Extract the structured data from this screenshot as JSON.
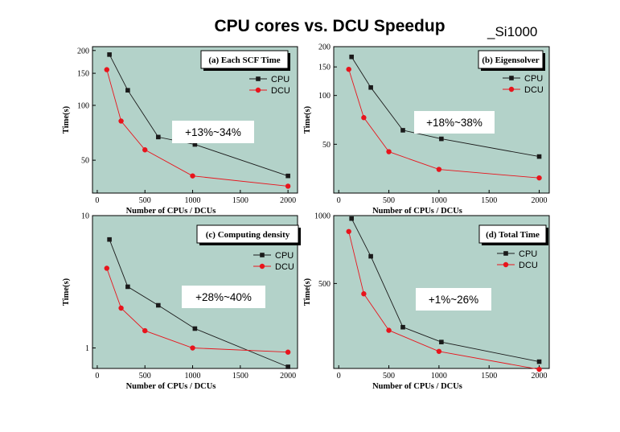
{
  "header": {
    "title": "CPU cores vs. DCU Speedup",
    "tag": "_Si1000"
  },
  "style": {
    "panel_bg": "#b3d2c9",
    "cpu_color": "#1a1a1a",
    "dcu_color": "#e8141c",
    "box_fill": "#ffffff"
  },
  "chart_data": [
    {
      "type": "line",
      "title": "(a) Each SCF Time",
      "xlabel": "Number of CPUs / DCUs",
      "ylabel": "Time(s)",
      "xlim": [
        -50,
        2100
      ],
      "ylim": [
        33,
        210
      ],
      "yscale": "log",
      "xticks": [
        0,
        500,
        1000,
        1500,
        2000
      ],
      "yticks": [
        50,
        100,
        150,
        200
      ],
      "annotation": "+13%~34%",
      "series": [
        {
          "name": "CPU",
          "marker": "square",
          "x": [
            128,
            320,
            640,
            1024,
            2000
          ],
          "y": [
            190,
            121,
            67,
            61,
            41
          ]
        },
        {
          "name": "DCU",
          "marker": "circle",
          "x": [
            100,
            250,
            500,
            1000,
            2000
          ],
          "y": [
            157,
            82,
            57,
            41,
            36
          ]
        }
      ]
    },
    {
      "type": "line",
      "title": "(b) Eigensolver",
      "xlabel": "Number of CPUs / DCUs",
      "ylabel": "Time(s)",
      "xlim": [
        -50,
        2100
      ],
      "ylim": [
        25,
        200
      ],
      "yscale": "log",
      "xticks": [
        0,
        500,
        1000,
        1500,
        2000
      ],
      "yticks": [
        50,
        100,
        150,
        200
      ],
      "annotation": "+18%~38%",
      "series": [
        {
          "name": "CPU",
          "marker": "square",
          "x": [
            128,
            320,
            640,
            1024,
            2000
          ],
          "y": [
            173,
            112,
            61,
            54,
            42
          ]
        },
        {
          "name": "DCU",
          "marker": "circle",
          "x": [
            100,
            250,
            500,
            1000,
            2000
          ],
          "y": [
            145,
            73,
            45,
            35,
            31
          ]
        }
      ]
    },
    {
      "type": "line",
      "title": "(c) Computing density",
      "xlabel": "Number of CPUs / DCUs",
      "ylabel": "Time(s)",
      "xlim": [
        -50,
        2100
      ],
      "ylim": [
        0.7,
        10
      ],
      "yscale": "log",
      "xticks": [
        0,
        500,
        1000,
        1500,
        2000
      ],
      "yticks": [
        1,
        10
      ],
      "annotation": "+28%~40%",
      "series": [
        {
          "name": "CPU",
          "marker": "square",
          "x": [
            128,
            320,
            640,
            1024,
            2000
          ],
          "y": [
            6.6,
            2.9,
            2.1,
            1.4,
            0.72
          ]
        },
        {
          "name": "DCU",
          "marker": "circle",
          "x": [
            100,
            250,
            500,
            1000,
            2000
          ],
          "y": [
            4.0,
            2.0,
            1.35,
            1.0,
            0.93
          ]
        }
      ]
    },
    {
      "type": "line",
      "title": "(d) Total Time",
      "xlabel": "Number of CPUs / DCUs",
      "ylabel": "Time(s)",
      "xlim": [
        -50,
        2100
      ],
      "ylim": [
        210,
        1000
      ],
      "yscale": "log",
      "xticks": [
        0,
        500,
        1000,
        1500,
        2000
      ],
      "yticks": [
        500,
        1000
      ],
      "annotation": "+1%~26%",
      "series": [
        {
          "name": "CPU",
          "marker": "square",
          "x": [
            128,
            320,
            640,
            1024,
            2000
          ],
          "y": [
            970,
            660,
            320,
            275,
            225
          ]
        },
        {
          "name": "DCU",
          "marker": "circle",
          "x": [
            100,
            250,
            500,
            1000,
            2000
          ],
          "y": [
            850,
            450,
            310,
            250,
            208
          ]
        }
      ]
    }
  ]
}
